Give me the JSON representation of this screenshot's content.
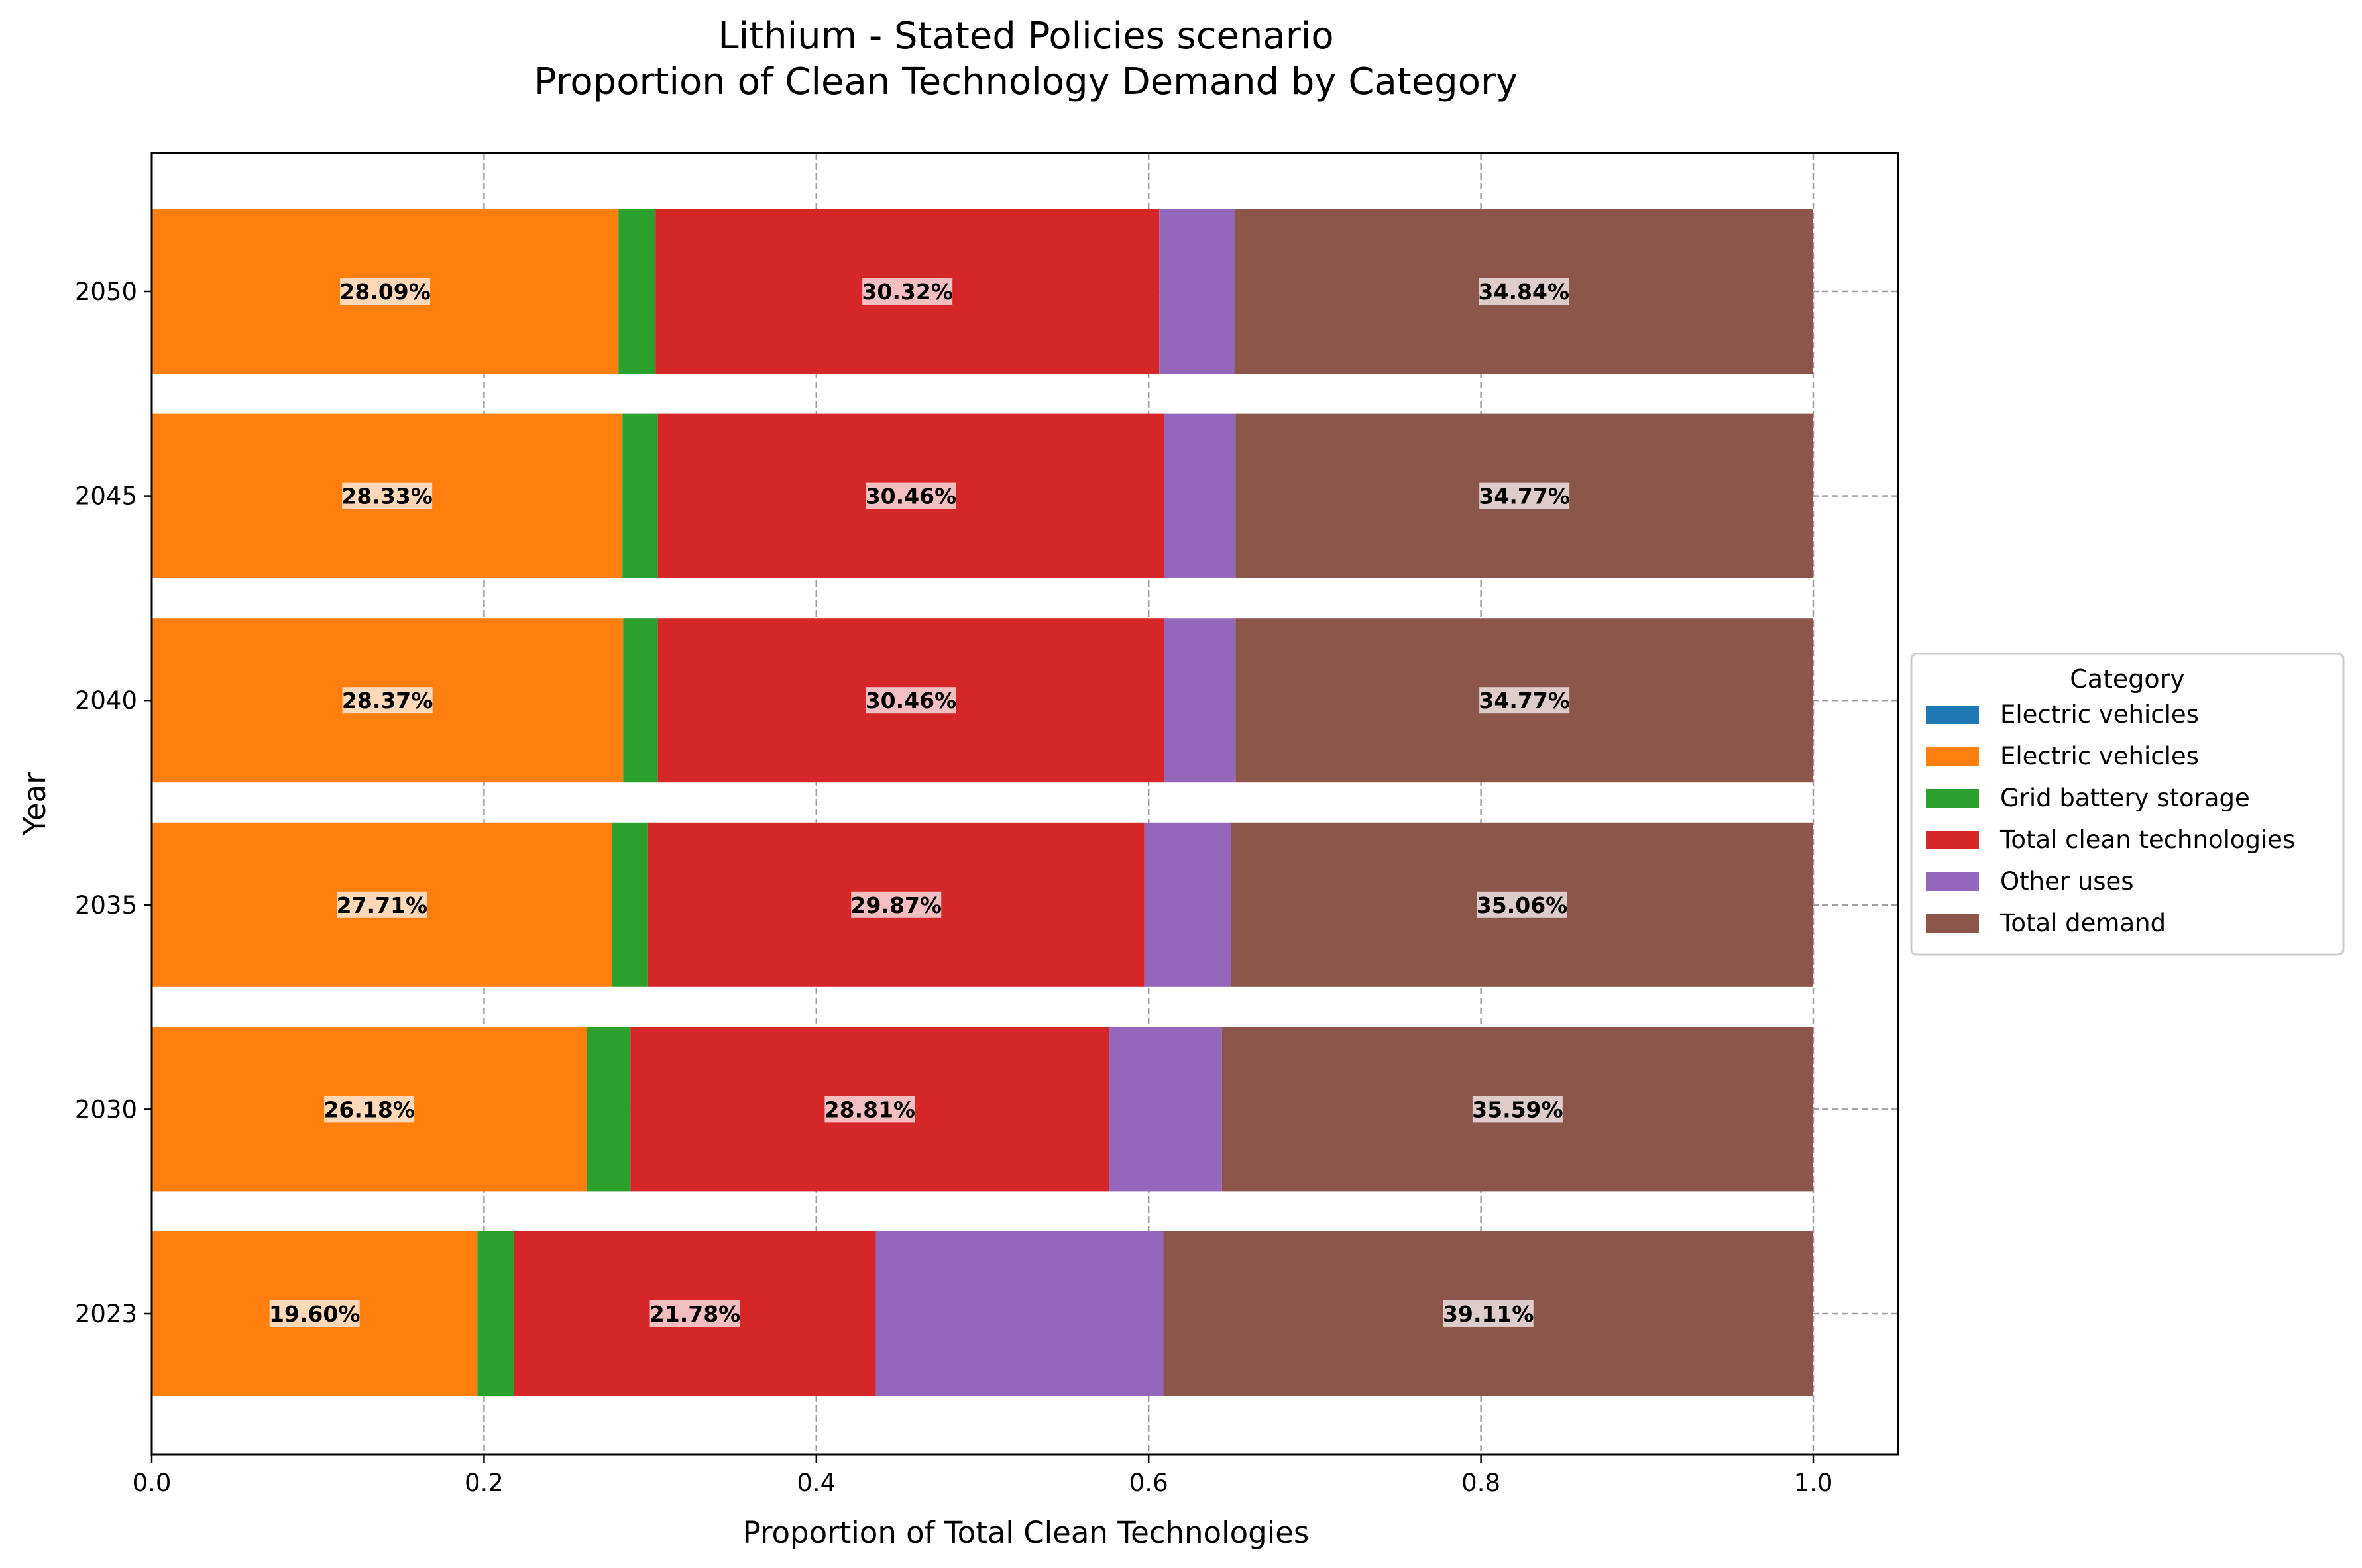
{
  "chart_data": {
    "type": "bar",
    "orientation": "horizontal",
    "stacked": true,
    "title": "Lithium - Stated Policies scenario",
    "subtitle": "Proportion of Clean Technology Demand by Category",
    "xlabel": "Proportion of Total Clean Technologies",
    "ylabel": "Year",
    "xlim": [
      0.0,
      1.05
    ],
    "xticks": [
      "0.0",
      "0.2",
      "0.4",
      "0.6",
      "0.8",
      "1.0"
    ],
    "grid": true,
    "legend": {
      "title": "Category",
      "placement": "center-right outside"
    },
    "categories": [
      "2023",
      "2030",
      "2035",
      "2040",
      "2045",
      "2050"
    ],
    "series": [
      {
        "name": "Electric vehicles",
        "color": "#1f77b4",
        "values": [
          0.0,
          0.0,
          0.0,
          0.0,
          0.0,
          0.0
        ],
        "labels": [
          "",
          "",
          "",
          "",
          "",
          ""
        ]
      },
      {
        "name": "Electric vehicles",
        "color": "#ff7f0e",
        "values": [
          0.196,
          0.2618,
          0.2771,
          0.2837,
          0.2833,
          0.2809
        ],
        "labels": [
          "19.60%",
          "26.18%",
          "27.71%",
          "28.37%",
          "28.33%",
          "28.09%"
        ]
      },
      {
        "name": "Grid battery storage",
        "color": "#2ca02c",
        "values": [
          0.022,
          0.0263,
          0.0216,
          0.0209,
          0.0213,
          0.0223
        ],
        "labels": [
          "",
          "",
          "",
          "",
          "",
          ""
        ]
      },
      {
        "name": "Total clean technologies",
        "color": "#d62728",
        "values": [
          0.2178,
          0.2881,
          0.2987,
          0.3046,
          0.3046,
          0.3032
        ],
        "labels": [
          "21.78%",
          "28.81%",
          "29.87%",
          "30.46%",
          "30.46%",
          "30.32%"
        ]
      },
      {
        "name": "Other uses",
        "color": "#9467bd",
        "values": [
          0.1731,
          0.0679,
          0.052,
          0.0431,
          0.0431,
          0.0452
        ],
        "labels": [
          "",
          "",
          "",
          "",
          "",
          ""
        ]
      },
      {
        "name": "Total demand",
        "color": "#8c564b",
        "values": [
          0.3911,
          0.3559,
          0.3506,
          0.3477,
          0.3477,
          0.3484
        ],
        "labels": [
          "39.11%",
          "35.59%",
          "35.06%",
          "34.77%",
          "34.77%",
          "34.84%"
        ]
      }
    ]
  }
}
